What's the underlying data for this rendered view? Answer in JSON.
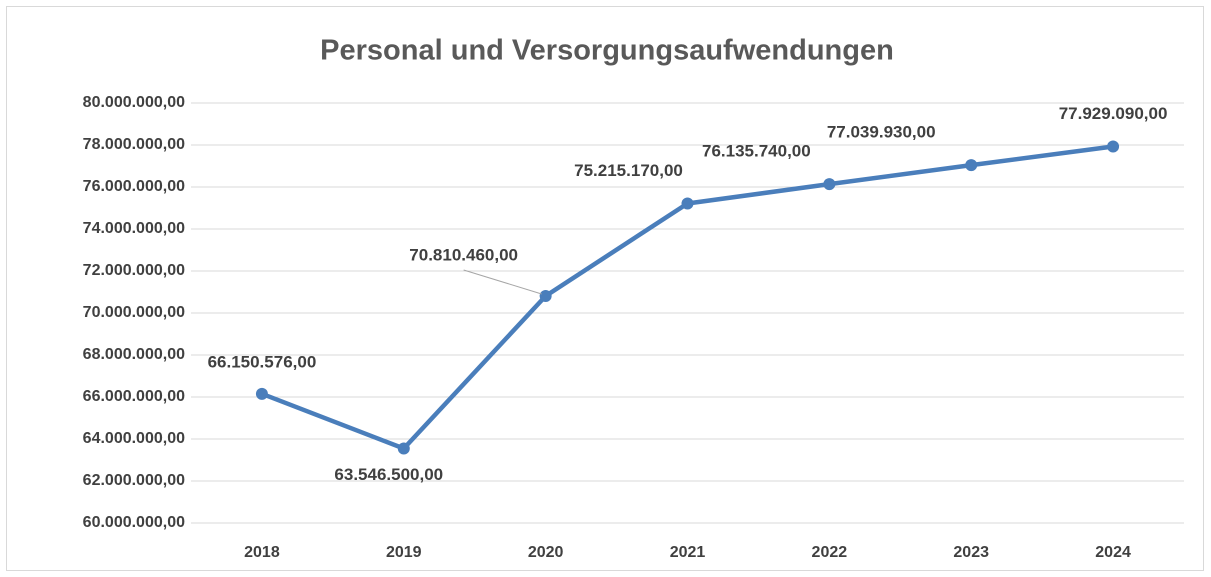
{
  "chart_data": {
    "type": "line",
    "title": "Personal und Versorgungsaufwendungen",
    "categories": [
      "2018",
      "2019",
      "2020",
      "2021",
      "2022",
      "2023",
      "2024"
    ],
    "series": [
      {
        "name": "Personal und Versorgungsaufwendungen",
        "color": "#4a7ebb",
        "values": [
          66150576,
          63546500,
          70810460,
          75215170,
          76135740,
          77039930,
          77929090
        ],
        "value_labels": [
          "66.150.576,00",
          "63.546.500,00",
          "70.810.460,00",
          "75.215.170,00",
          "76.135.740,00",
          "77.039.930,00",
          "77.929.090,00"
        ]
      }
    ],
    "ylim": [
      60000000,
      80000000
    ],
    "yticks": [
      {
        "value": 60000000,
        "label": "60.000.000,00"
      },
      {
        "value": 62000000,
        "label": "62.000.000,00"
      },
      {
        "value": 64000000,
        "label": "64.000.000,00"
      },
      {
        "value": 66000000,
        "label": "66.000.000,00"
      },
      {
        "value": 68000000,
        "label": "68.000.000,00"
      },
      {
        "value": 70000000,
        "label": "70.000.000,00"
      },
      {
        "value": 72000000,
        "label": "72.000.000,00"
      },
      {
        "value": 74000000,
        "label": "74.000.000,00"
      },
      {
        "value": 76000000,
        "label": "76.000.000,00"
      },
      {
        "value": 78000000,
        "label": "78.000.000,00"
      },
      {
        "value": 80000000,
        "label": "80.000.000,00"
      }
    ],
    "grid": true
  }
}
